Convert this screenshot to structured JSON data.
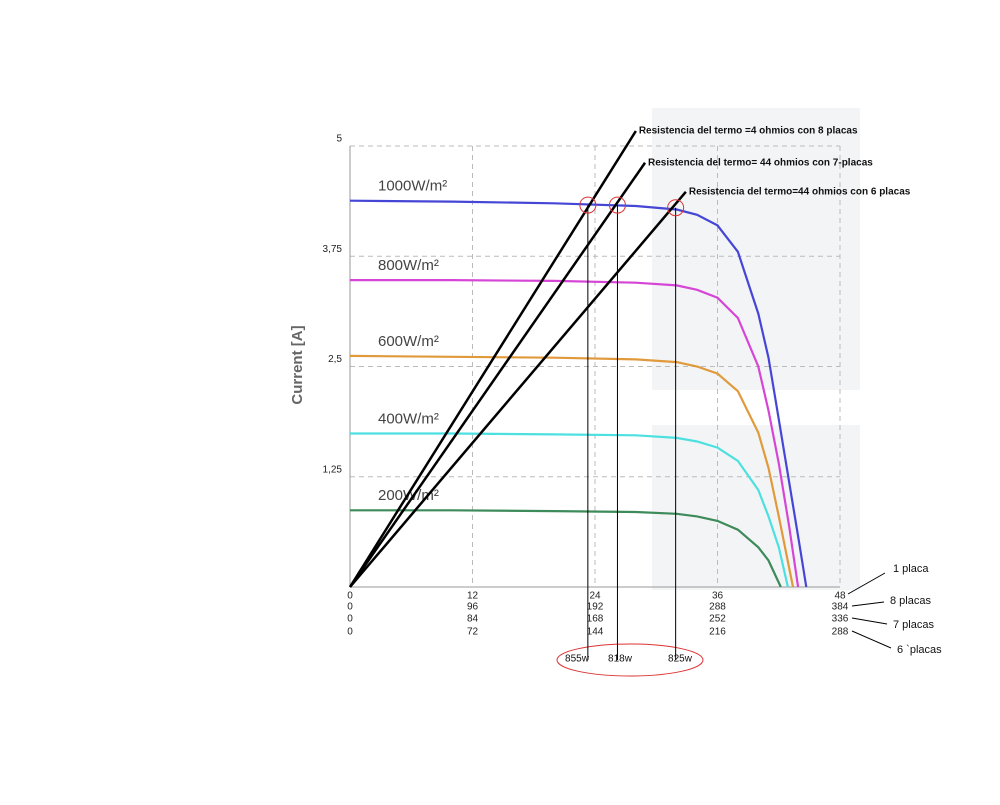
{
  "chart_data": {
    "type": "line",
    "y_label": "Current [A]",
    "xlim": [
      0,
      48
    ],
    "xticks": [
      0,
      12,
      24,
      36,
      48
    ],
    "x_axis_name": "1 placa",
    "extra_x_axes": [
      {
        "name": "8 placas",
        "ticks": [
          0,
          96,
          192,
          288,
          384
        ]
      },
      {
        "name": "7 placas",
        "ticks": [
          0,
          84,
          168,
          252,
          336
        ]
      },
      {
        "name": "6 `placas",
        "ticks": [
          0,
          72,
          144,
          216,
          288
        ]
      }
    ],
    "ylim": [
      0,
      5
    ],
    "yticks": [
      {
        "value": 1.25,
        "label": "1,25"
      },
      {
        "value": 2.5,
        "label": "2,5"
      },
      {
        "value": 3.75,
        "label": "3,75"
      },
      5
    ],
    "grid": true,
    "series": [
      {
        "name": "1000W/m²",
        "color": "#4646d6",
        "x": [
          0,
          10,
          20,
          28,
          32,
          34,
          36,
          38,
          40,
          41,
          42,
          43,
          44,
          44.7
        ],
        "values": [
          4.38,
          4.37,
          4.35,
          4.32,
          4.28,
          4.22,
          4.1,
          3.8,
          3.1,
          2.6,
          1.9,
          1.2,
          0.5,
          0
        ]
      },
      {
        "name": "800W/m²",
        "color": "#d646d6",
        "x": [
          0,
          10,
          20,
          28,
          32,
          34,
          36,
          38,
          40,
          41,
          42,
          43,
          43.9
        ],
        "values": [
          3.48,
          3.48,
          3.47,
          3.45,
          3.42,
          3.37,
          3.28,
          3.05,
          2.5,
          2.0,
          1.4,
          0.7,
          0
        ]
      },
      {
        "name": "600W/m²",
        "color": "#e09a3c",
        "x": [
          0,
          10,
          20,
          28,
          32,
          34,
          36,
          38,
          40,
          41,
          42,
          43.4
        ],
        "values": [
          2.62,
          2.61,
          2.6,
          2.58,
          2.55,
          2.5,
          2.42,
          2.22,
          1.75,
          1.35,
          0.8,
          0
        ]
      },
      {
        "name": "400W/m²",
        "color": "#4de0e0",
        "x": [
          0,
          10,
          20,
          28,
          32,
          34,
          36,
          38,
          40,
          41,
          42,
          42.9
        ],
        "values": [
          1.74,
          1.74,
          1.73,
          1.72,
          1.69,
          1.65,
          1.58,
          1.43,
          1.1,
          0.8,
          0.45,
          0
        ]
      },
      {
        "name": "200W/m²",
        "color": "#3d8a5a",
        "x": [
          0,
          10,
          20,
          28,
          32,
          34,
          36,
          38,
          40,
          41,
          42.2
        ],
        "values": [
          0.87,
          0.87,
          0.86,
          0.85,
          0.83,
          0.8,
          0.75,
          0.65,
          0.45,
          0.3,
          0
        ]
      }
    ],
    "load_lines": [
      {
        "label": "Resistencia del termo =4 ohmios con 8 placas",
        "x": [
          0,
          28
        ],
        "y": [
          0,
          5.17
        ],
        "point_x": 23.3,
        "point_y": 4.33,
        "power_label": "855w"
      },
      {
        "label": "Resistencia del termo= 44 ohmios  con 7-placas",
        "x": [
          0,
          28.9
        ],
        "y": [
          0,
          4.81
        ],
        "point_x": 26.2,
        "point_y": 4.33,
        "power_label": "818w"
      },
      {
        "label": "Resistencia del termo=44 ohmios con 6 placas",
        "x": [
          0,
          32.9
        ],
        "y": [
          0,
          4.48
        ],
        "point_x": 31.9,
        "point_y": 4.3,
        "power_label": "825w"
      }
    ]
  }
}
